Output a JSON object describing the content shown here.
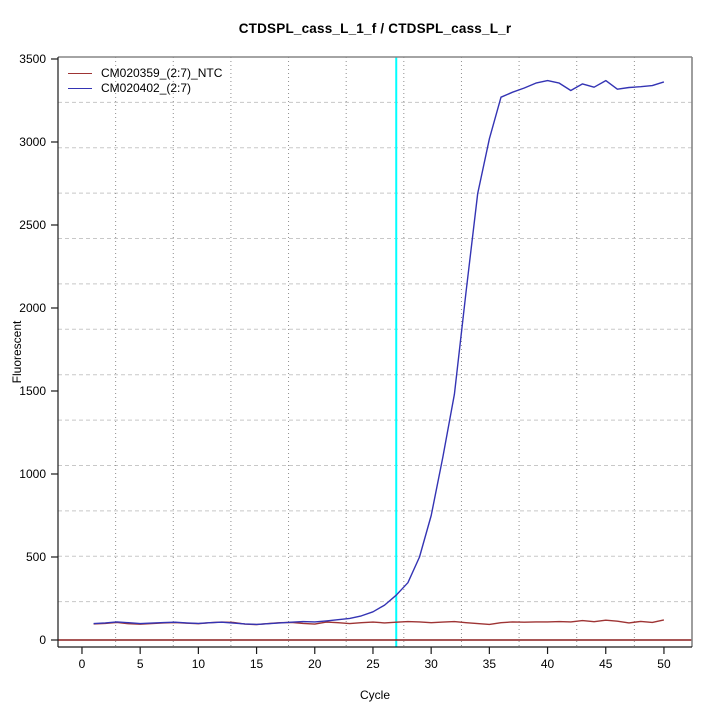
{
  "chart_data": {
    "type": "line",
    "title": "CTDSPL_cass_L_1_f / CTDSPL_cass_L_r",
    "xlabel": "Cycle",
    "ylabel": "Fluorescent",
    "x_ticks": [
      0,
      5,
      10,
      15,
      20,
      25,
      30,
      35,
      40,
      45,
      50
    ],
    "y_ticks": [
      0,
      500,
      1000,
      1500,
      2000,
      2500,
      3000,
      3500
    ],
    "xlim": [
      -2.06,
      52.41
    ],
    "ylim": [
      -42.2,
      3512
    ],
    "grid": {
      "v_divisions": 11,
      "h_divisions": 13,
      "legend_position": "top-left"
    },
    "x": [
      1,
      2,
      3,
      4,
      5,
      6,
      7,
      8,
      9,
      10,
      11,
      12,
      13,
      14,
      15,
      16,
      17,
      18,
      19,
      20,
      21,
      22,
      23,
      24,
      25,
      26,
      27,
      28,
      29,
      30,
      31,
      32,
      33,
      34,
      35,
      36,
      37,
      38,
      39,
      40,
      41,
      42,
      43,
      44,
      45,
      46,
      47,
      48,
      49,
      50
    ],
    "series": [
      {
        "name": "CM020359_(2:7)_NTC",
        "color": "#9e3434",
        "values": [
          97,
          100,
          106,
          98,
          95,
          99,
          103,
          105,
          101,
          98,
          104,
          108,
          106,
          96,
          93,
          99,
          104,
          106,
          100,
          96,
          108,
          104,
          99,
          104,
          108,
          103,
          107,
          111,
          109,
          104,
          108,
          111,
          104,
          99,
          94,
          104,
          109,
          107,
          109,
          109,
          111,
          109,
          117,
          110,
          119,
          113,
          103,
          112,
          106,
          121
        ]
      },
      {
        "name": "CM020402_(2:7)",
        "color": "#3434b4",
        "values": [
          99,
          103,
          109,
          104,
          99,
          102,
          105,
          107,
          103,
          100,
          104,
          107,
          102,
          97,
          94,
          98,
          103,
          107,
          111,
          109,
          115,
          122,
          130,
          145,
          170,
          210,
          270,
          345,
          500,
          750,
          1100,
          1480,
          2100,
          2690,
          3020,
          3270,
          3300,
          3325,
          3355,
          3370,
          3355,
          3310,
          3350,
          3330,
          3370,
          3318,
          3328,
          3333,
          3340,
          3362
        ]
      }
    ],
    "threshold_line": {
      "x": 27,
      "color": "#00ffff"
    },
    "baseline": {
      "y": 0,
      "color": "#8b1f1f"
    }
  },
  "style": {
    "grid_h_color": "#c8c8c8",
    "grid_v_color": "#8f8f8f",
    "box_gray": "#868686",
    "axis_black": "#1a1a1a"
  }
}
